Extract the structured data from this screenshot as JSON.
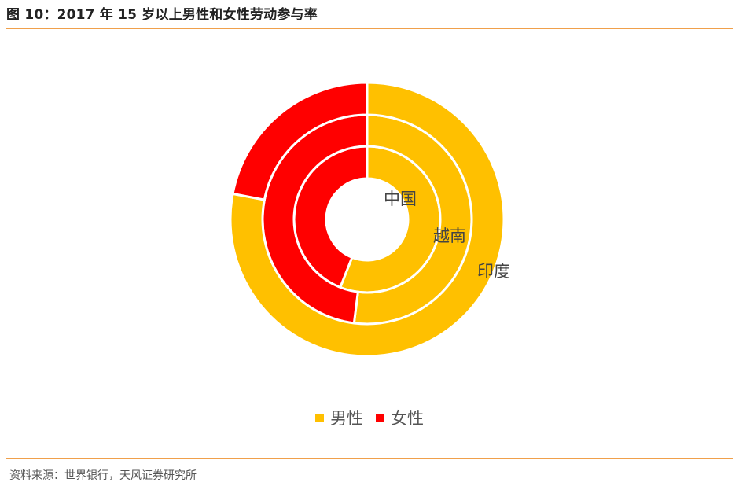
{
  "header": {
    "title": "图 10：2017 年 15 岁以上男性和女性劳动参与率"
  },
  "footer": {
    "source": "资料来源：世界银行，天风证券研究所"
  },
  "colors": {
    "male": "#ffc000",
    "female": "#ff0000",
    "rule": "#f0a04b"
  },
  "chart_data": {
    "type": "pie",
    "variant": "nested-donut",
    "title": "",
    "ring_order": "inner-to-outer",
    "categories": [
      "男性",
      "女性"
    ],
    "rings": [
      {
        "label": "中国",
        "values": [
          0.56,
          0.44
        ]
      },
      {
        "label": "越南",
        "values": [
          0.52,
          0.48
        ]
      },
      {
        "label": "印度",
        "values": [
          0.78,
          0.22
        ]
      }
    ],
    "legend": {
      "position": "bottom",
      "items": [
        {
          "name": "男性",
          "color": "#ffc000"
        },
        {
          "name": "女性",
          "color": "#ff0000"
        }
      ]
    }
  }
}
